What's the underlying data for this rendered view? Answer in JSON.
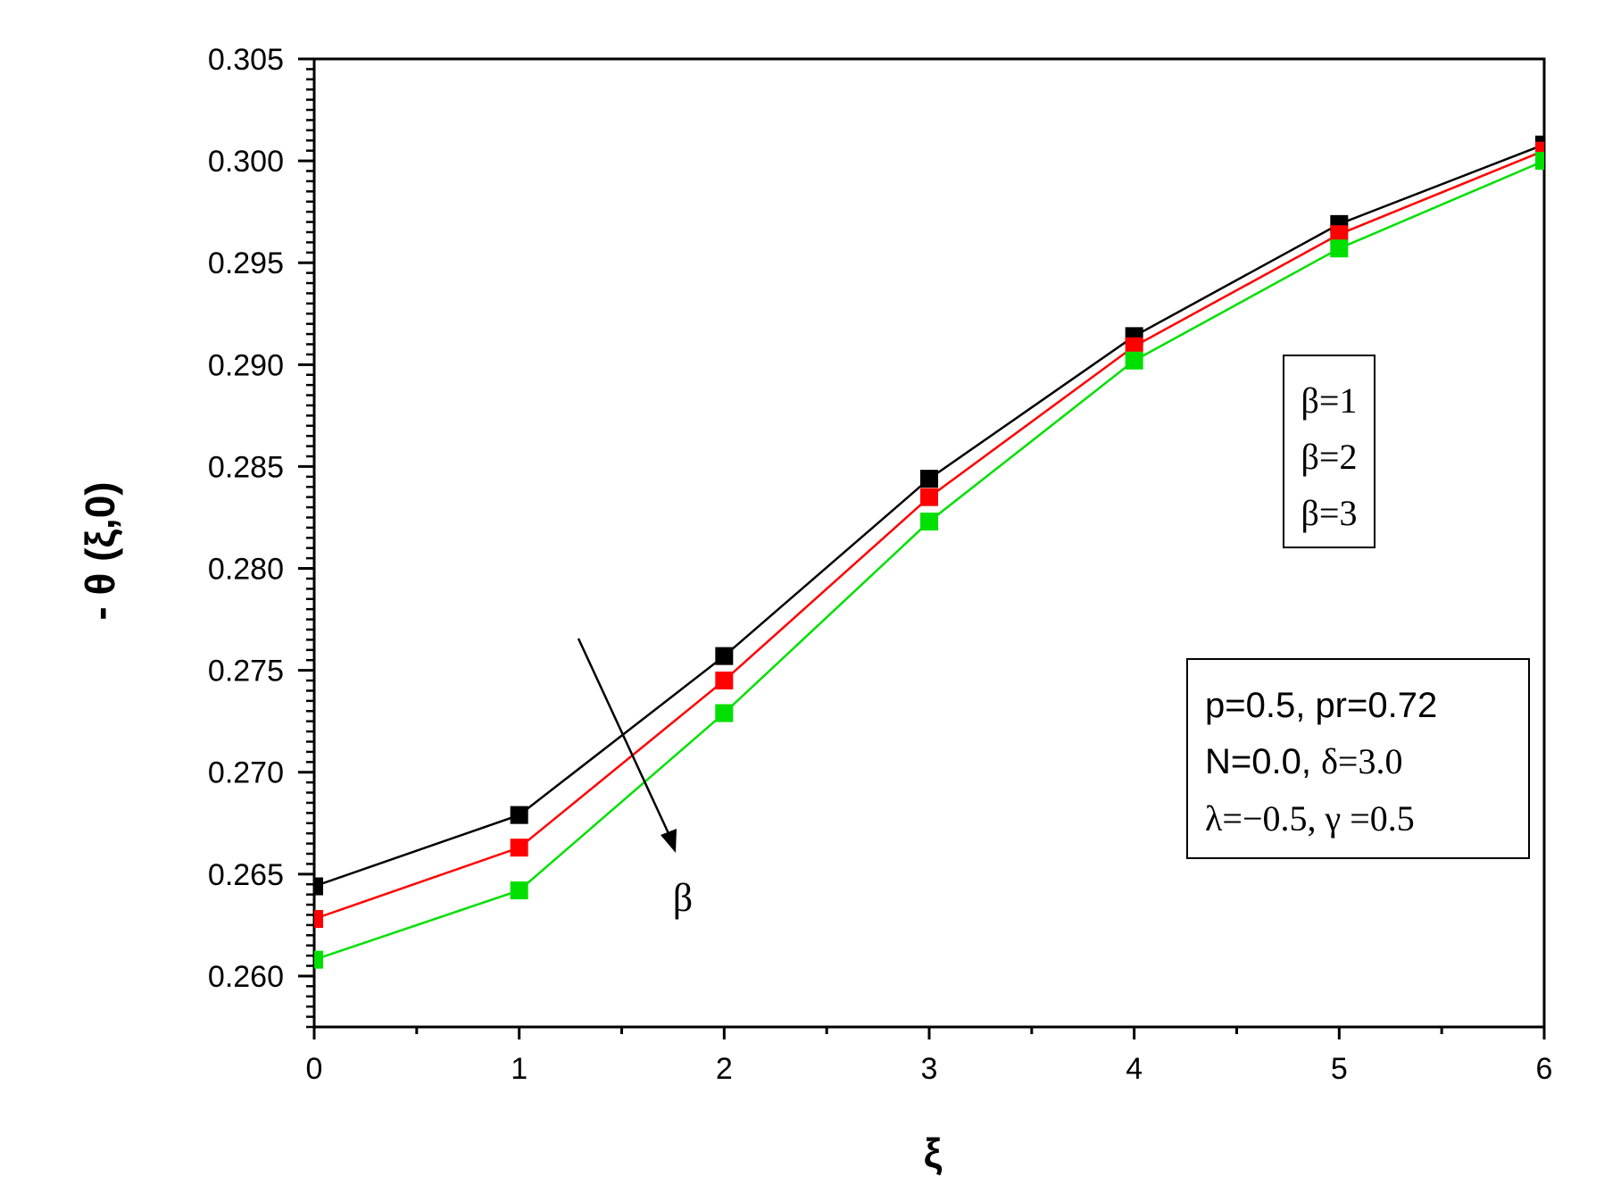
{
  "chart_data": {
    "type": "line",
    "xlabel": "ξ",
    "ylabel": "- θ (ξ,0)",
    "xlim": [
      0,
      6
    ],
    "ylim": [
      0.2575,
      0.305
    ],
    "x_ticks": [
      "0",
      "1",
      "2",
      "3",
      "4",
      "5",
      "6"
    ],
    "y_ticks": [
      "0.260",
      "0.265",
      "0.270",
      "0.275",
      "0.280",
      "0.285",
      "0.290",
      "0.295",
      "0.300",
      "0.305"
    ],
    "x": [
      0,
      1,
      2,
      3,
      4,
      5,
      6
    ],
    "series": [
      {
        "name": "β=1",
        "color": "#000000",
        "values": [
          0.2644,
          0.2679,
          0.2757,
          0.2844,
          0.2914,
          0.2969,
          0.3008
        ]
      },
      {
        "name": "β=2",
        "color": "#ff0000",
        "values": [
          0.2628,
          0.2663,
          0.2745,
          0.2835,
          0.2909,
          0.2964,
          0.3005
        ]
      },
      {
        "name": "β=3",
        "color": "#00e000",
        "values": [
          0.2608,
          0.2642,
          0.2729,
          0.2823,
          0.2902,
          0.2957,
          0.3
        ]
      }
    ],
    "legend_position": "right",
    "arrow_label": "β",
    "annotation": {
      "line1": "p=0.5, pr=0.72",
      "line2_sans": "N=0.0, ",
      "line2_serif": "δ=3.0",
      "line3": "λ=−0.5, γ =0.5"
    },
    "grid": false
  }
}
